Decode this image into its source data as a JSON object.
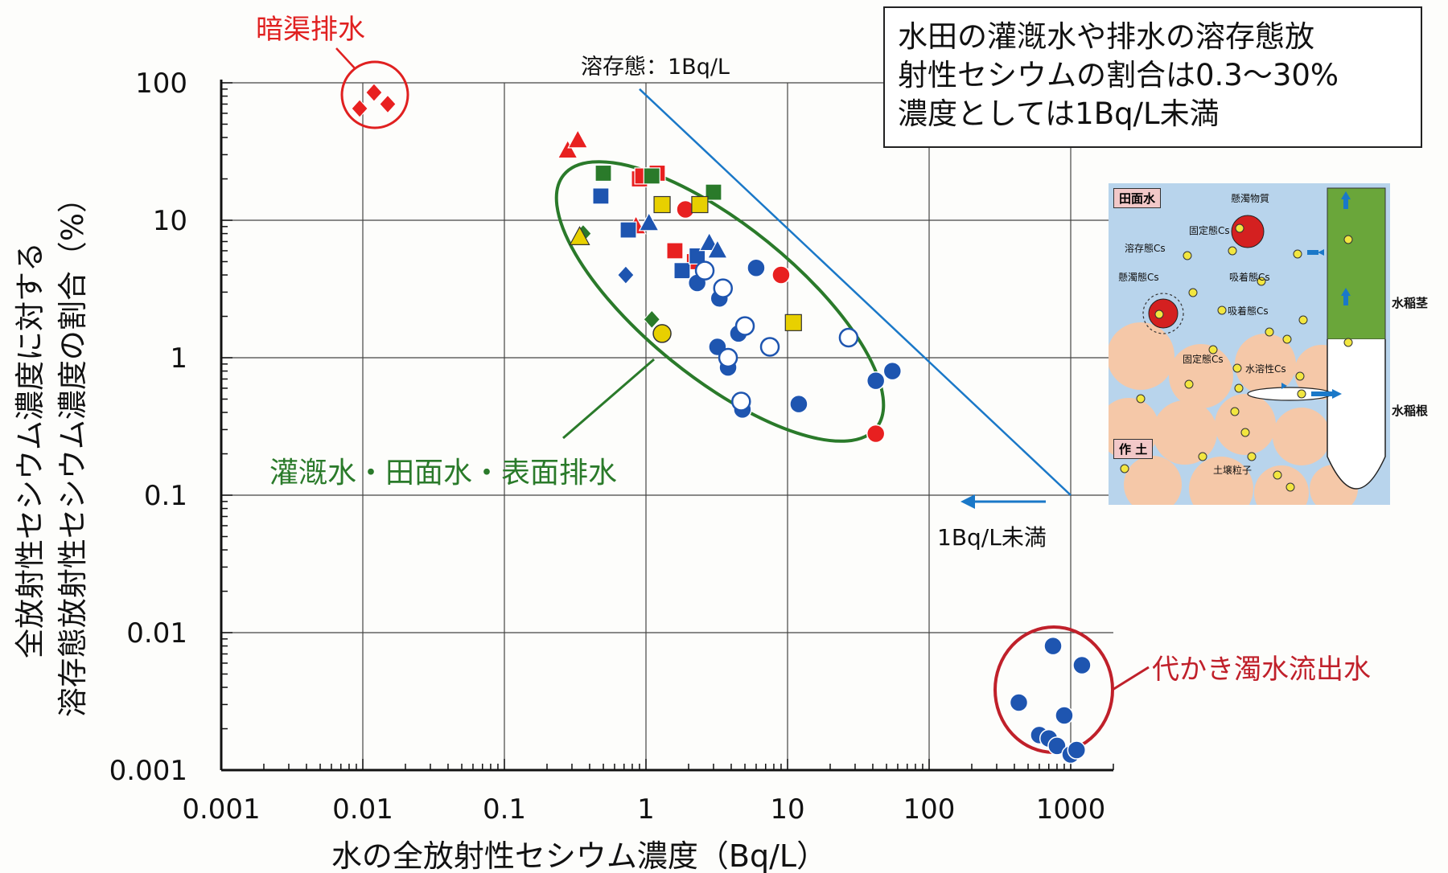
{
  "chart_data": {
    "type": "scatter",
    "x_scale": "log",
    "y_scale": "log",
    "xlim": [
      0.001,
      2000
    ],
    "ylim": [
      0.001,
      100
    ],
    "xlabel": "水の全放射性セシウム濃度（Bq/L）",
    "ylabel_line1": "全放射性セシウム濃度に対する",
    "ylabel_line2": "溶存態放射性セシウム濃度の割合（%）",
    "x_ticks": [
      "0.001",
      "0.01",
      "0.1",
      "1",
      "10",
      "100",
      "1000"
    ],
    "y_ticks": [
      "0.001",
      "0.01",
      "0.1",
      "1",
      "10",
      "100"
    ],
    "grid": true,
    "reference_line": {
      "label": "溶存態：1Bq/L",
      "from": [
        0.9,
        90
      ],
      "to": [
        1000,
        0.1
      ]
    },
    "arrow_label": "1Bq/L未満",
    "groups": [
      {
        "label": "暗渠排水",
        "color": "#e02020"
      },
      {
        "label": "灌漑水・田面水・表面排水",
        "color": "#2a7a2a"
      },
      {
        "label": "代かき濁水流出水",
        "color": "#c0202a"
      }
    ],
    "series": [
      {
        "marker": "diamond",
        "color": "#e82020",
        "points": [
          [
            0.012,
            85
          ],
          [
            0.0095,
            65
          ],
          [
            0.015,
            70
          ]
        ]
      },
      {
        "marker": "triangle",
        "color": "#e82020",
        "points": [
          [
            0.28,
            32
          ],
          [
            0.33,
            38
          ],
          [
            0.85,
            9
          ]
        ]
      },
      {
        "marker": "square",
        "color": "#e82020",
        "points": [
          [
            0.9,
            20
          ],
          [
            0.95,
            21
          ],
          [
            1.2,
            22
          ],
          [
            1.6,
            6
          ],
          [
            2.2,
            5
          ]
        ]
      },
      {
        "marker": "circle",
        "color": "#e82020",
        "points": [
          [
            1.9,
            12
          ],
          [
            9,
            4
          ],
          [
            42,
            0.28
          ]
        ]
      },
      {
        "marker": "square",
        "color": "#2a7a2a",
        "points": [
          [
            0.5,
            22
          ],
          [
            1.1,
            21
          ],
          [
            3,
            16
          ]
        ]
      },
      {
        "marker": "diamond",
        "color": "#2a7a2a",
        "points": [
          [
            0.36,
            8
          ],
          [
            1.1,
            1.9
          ]
        ]
      },
      {
        "marker": "square",
        "color": "#1e55b0",
        "points": [
          [
            0.48,
            15
          ],
          [
            0.75,
            8.5
          ],
          [
            1.8,
            4.3
          ],
          [
            2.3,
            5.5
          ]
        ]
      },
      {
        "marker": "triangle",
        "color": "#1e55b0",
        "points": [
          [
            1.05,
            9.5
          ],
          [
            2.8,
            6.8
          ],
          [
            3.2,
            6
          ]
        ]
      },
      {
        "marker": "diamond",
        "color": "#1e55b0",
        "points": [
          [
            0.72,
            4
          ]
        ]
      },
      {
        "marker": "circle",
        "color": "#1e55b0",
        "points": [
          [
            2.3,
            3.5
          ],
          [
            3.3,
            2.7
          ],
          [
            6,
            4.5
          ],
          [
            3.2,
            1.2
          ],
          [
            4.5,
            1.5
          ],
          [
            3.8,
            0.85
          ],
          [
            4.8,
            0.42
          ],
          [
            12,
            0.46
          ],
          [
            42,
            0.68
          ],
          [
            55,
            0.8
          ],
          [
            600,
            0.0018
          ],
          [
            750,
            0.008
          ],
          [
            1200,
            0.0058
          ],
          [
            430,
            0.0031
          ],
          [
            900,
            0.0025
          ],
          [
            700,
            0.0017
          ],
          [
            800,
            0.0015
          ],
          [
            1000,
            0.0013
          ],
          [
            1100,
            0.0014
          ]
        ]
      },
      {
        "marker": "circle-open",
        "color": "#1e55b0",
        "points": [
          [
            2.6,
            4.3
          ],
          [
            3.5,
            3.2
          ],
          [
            5,
            1.7
          ],
          [
            3.8,
            1.0
          ],
          [
            7.5,
            1.2
          ],
          [
            4.7,
            0.48
          ],
          [
            27,
            1.4
          ]
        ]
      },
      {
        "marker": "square",
        "color": "#e8d000",
        "points": [
          [
            1.3,
            13
          ],
          [
            2.4,
            13
          ],
          [
            11,
            1.8
          ]
        ]
      },
      {
        "marker": "circle",
        "color": "#e8d000",
        "points": [
          [
            1.3,
            1.5
          ]
        ]
      },
      {
        "marker": "triangle",
        "color": "#e8d000",
        "points": [
          [
            0.34,
            7.5
          ]
        ]
      }
    ]
  },
  "infobox": {
    "line1": "水田の灌漑水や排水の溶存態放",
    "line2": "射性セシウムの割合は0.3～30%",
    "line3": "濃度としては1Bq/L未満"
  },
  "inset": {
    "tag_top": "田面水",
    "tag_bottom": "作 土",
    "suspended_matter": "懸濁物質",
    "fixed_cs_1": "固定態Cs",
    "dissolved_cs": "溶存態Cs",
    "suspended_cs": "懸濁態Cs",
    "adsorbed_cs_1": "吸着態Cs",
    "adsorbed_cs_2": "吸着態Cs",
    "fixed_cs_2": "固定態Cs",
    "water_soluble": "水溶性Cs",
    "soil_particle": "土壌粒子",
    "rice_stem": "水稲茎",
    "rice_root": "水稲根",
    "colors": {
      "water": "#b8d4ec",
      "soil": "#f5c8a8",
      "stem": "#6aa63a",
      "particle": "#d42020",
      "cs": "#f2e640"
    }
  }
}
